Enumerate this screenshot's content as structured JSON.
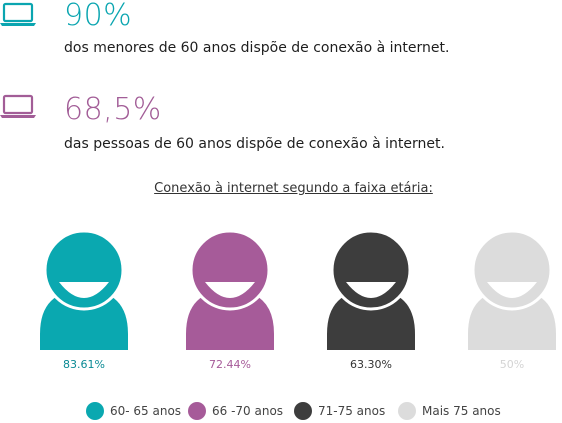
{
  "stats": [
    {
      "value": "90%",
      "text": "dos menores de 60 anos dispõe de conexão à internet.",
      "color": "#0aa5b0",
      "icon": "laptop-icon"
    },
    {
      "value": "68,5%",
      "text": "das pessoas de 60 anos dispõe de conexão à internet.",
      "color": "#a25d97",
      "icon": "laptop-icon"
    }
  ],
  "chart_data": {
    "type": "pictograph",
    "title": "Conexão à internet segundo a faixa etária:",
    "categories": [
      "60- 65 anos",
      "66 -70 anos",
      "71-75 anos",
      "Mais 75 anos"
    ],
    "values": [
      83.61,
      72.44,
      63.3,
      50
    ],
    "value_labels": [
      "83.61%",
      "72.44%",
      "63.30%",
      "50%"
    ],
    "colors": [
      "#0aa8b0",
      "#a65b99",
      "#3d3d3d",
      "#dcdcdc"
    ],
    "label_colors": [
      "#0a8a94",
      "#a65b99",
      "#333333",
      "#d4d4d4"
    ],
    "legend_position": "bottom",
    "icon": "person-avatar-icon"
  }
}
